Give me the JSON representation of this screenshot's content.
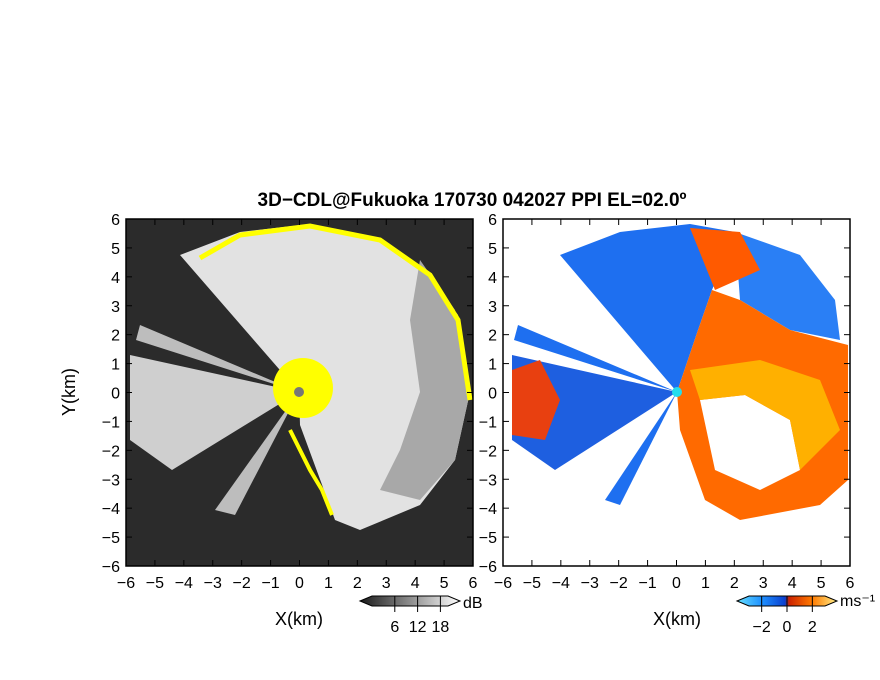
{
  "title": "3D−CDL@Fukuoka 170730 042027 PPI EL=02.0º",
  "chart_data": [
    {
      "type": "heatmap",
      "panel": "left",
      "quantity_unit": "dB",
      "xlabel": "X(km)",
      "ylabel": "Y(km)",
      "xlim": [
        -6,
        6
      ],
      "ylim": [
        -6,
        6
      ],
      "xticks": [
        "−6",
        "−5",
        "−4",
        "−3",
        "−2",
        "−1",
        "0",
        "1",
        "2",
        "3",
        "4",
        "5",
        "6"
      ],
      "yticks": [
        "6",
        "5",
        "4",
        "3",
        "2",
        "1",
        "0",
        "−1",
        "−2",
        "−3",
        "−4",
        "−5",
        "−6"
      ],
      "colorbar": {
        "ticks": [
          "6",
          "12",
          "18"
        ],
        "unit": "dB",
        "values": [
          6,
          12,
          18
        ],
        "range": [
          0,
          20
        ]
      },
      "colors": {
        "background": "#2b2b2b",
        "signal": "#e6e6e6",
        "highlight": "#ffff00"
      }
    },
    {
      "type": "heatmap",
      "panel": "right",
      "quantity_unit": "ms⁻¹",
      "xlabel": "X(km)",
      "xlim": [
        -6,
        6
      ],
      "ylim": [
        -6,
        6
      ],
      "xticks": [
        "−6",
        "−5",
        "−4",
        "−3",
        "−2",
        "−1",
        "0",
        "1",
        "2",
        "3",
        "4",
        "5",
        "6"
      ],
      "yticks": [
        "6",
        "5",
        "4",
        "3",
        "2",
        "1",
        "0",
        "−1",
        "−2",
        "−3",
        "−4",
        "−5",
        "−6"
      ],
      "colorbar": {
        "ticks": [
          "−2",
          "0",
          "2"
        ],
        "unit": "ms⁻¹",
        "values": [
          -2,
          0,
          2
        ],
        "range": [
          -3,
          3
        ]
      },
      "colors": {
        "negative": "#1e6ff0",
        "positive": "#ff6a00",
        "max": "#ffffff"
      }
    }
  ]
}
